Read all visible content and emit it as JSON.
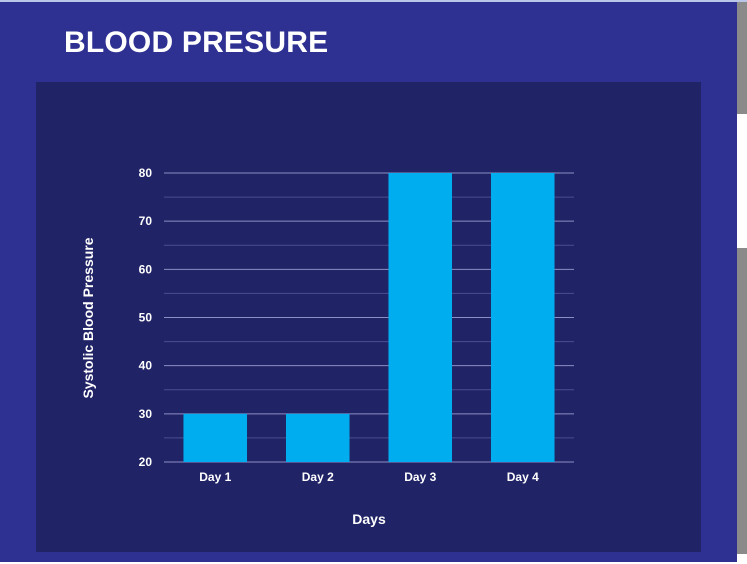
{
  "header": {
    "title": "BLOOD PRESURE"
  },
  "chart_data": {
    "type": "bar",
    "categories": [
      "Day 1",
      "Day 2",
      "Day 3",
      "Day 4"
    ],
    "values": [
      30,
      30,
      80,
      80
    ],
    "xlabel": "Days",
    "ylabel": "Systolic Blood Pressure",
    "ylim": [
      20,
      80
    ],
    "yticks": [
      20,
      30,
      40,
      50,
      60,
      70,
      80
    ],
    "grid": true,
    "colors": {
      "bar": "#00adef",
      "panel": "#202365",
      "background": "#2e3192"
    }
  }
}
